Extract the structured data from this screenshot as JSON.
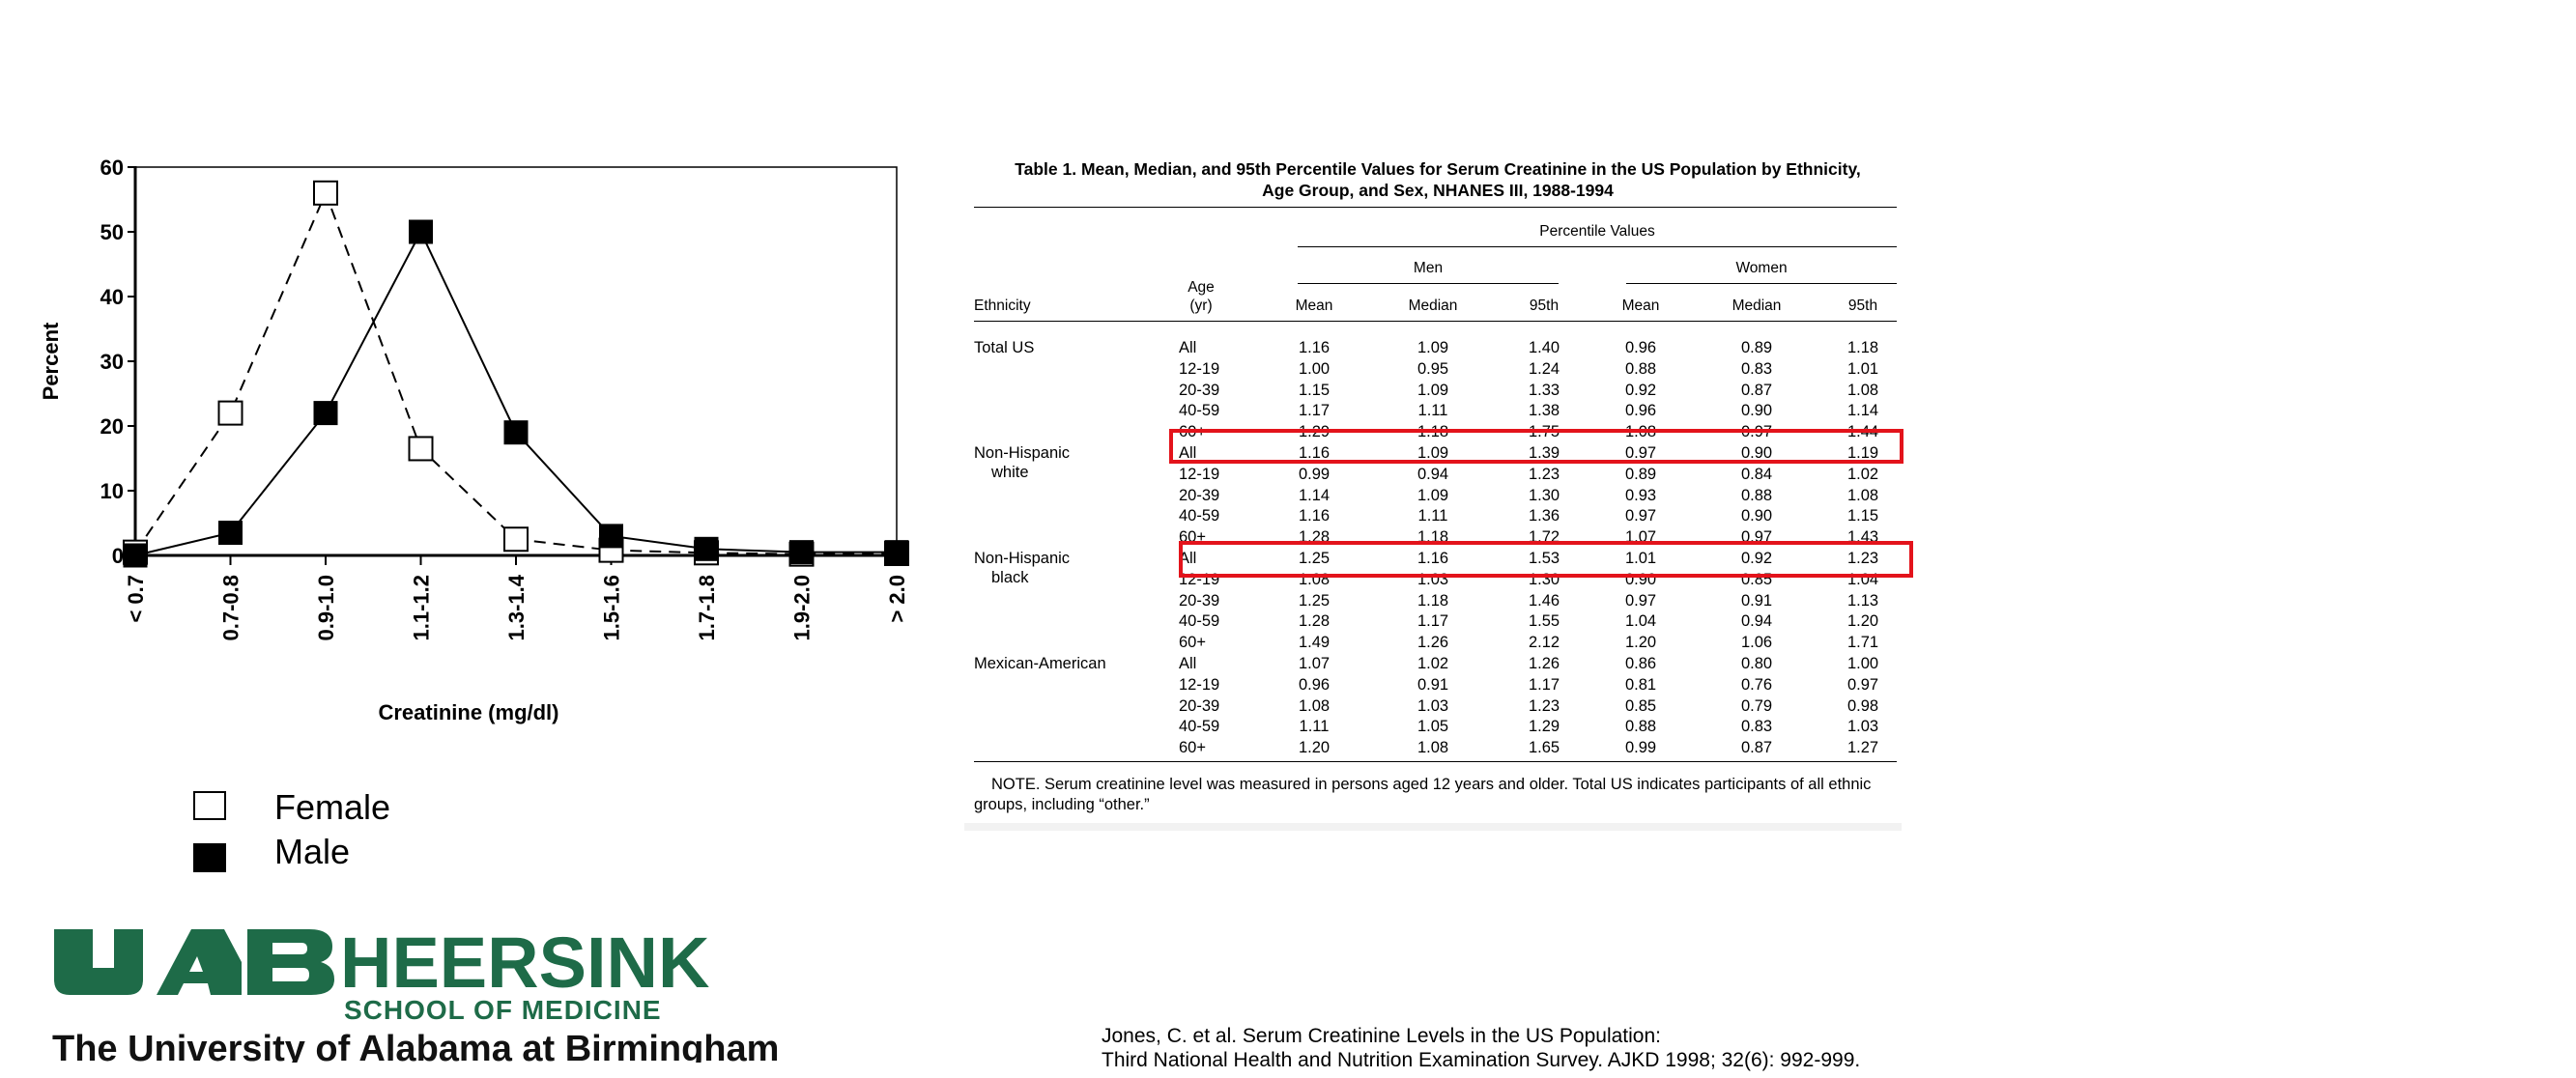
{
  "chart_data": {
    "type": "line",
    "xlabel": "Creatinine (mg/dl)",
    "ylabel": "Percent",
    "categories": [
      "< 0.7",
      "0.7-0.8",
      "0.9-1.0",
      "1.1-1.2",
      "1.3-1.4",
      "1.5-1.6",
      "1.7-1.8",
      "1.9-2.0",
      "> 2.0"
    ],
    "yticks": [
      0,
      10,
      20,
      30,
      40,
      50,
      60
    ],
    "ylim": [
      0,
      60
    ],
    "grid": false,
    "series": [
      {
        "name": "Female",
        "values": [
          0.5,
          22,
          56,
          16.5,
          2.5,
          0.8,
          0.4,
          0.2,
          0.3
        ],
        "color": "#000000",
        "marker": "open-square",
        "line": "dashed"
      },
      {
        "name": "Male",
        "values": [
          0,
          3.5,
          22,
          50,
          19,
          3,
          1,
          0.5,
          0.5
        ],
        "color": "#000000",
        "marker": "filled-square",
        "line": "solid"
      }
    ]
  },
  "legend": {
    "female": "Female",
    "male": "Male"
  },
  "table": {
    "title_line1": "Table 1.  Mean, Median, and 95th Percentile Values for Serum Creatinine in the US Population by Ethnicity,",
    "title_line2": "Age Group, and Sex, NHANES III, 1988-1994",
    "header": {
      "percentile": "Percentile Values",
      "men": "Men",
      "women": "Women",
      "ethnicity": "Ethnicity",
      "age_line1": "Age",
      "age_line2": "(yr)",
      "mean": "Mean",
      "median": "Median",
      "p95": "95th"
    },
    "groups": [
      {
        "ethnicity": [
          "Total US"
        ],
        "rows": [
          [
            "All",
            "1.16",
            "1.09",
            "1.40",
            "0.96",
            "0.89",
            "1.18"
          ],
          [
            "12-19",
            "1.00",
            "0.95",
            "1.24",
            "0.88",
            "0.83",
            "1.01"
          ],
          [
            "20-39",
            "1.15",
            "1.09",
            "1.33",
            "0.92",
            "0.87",
            "1.08"
          ],
          [
            "40-59",
            "1.17",
            "1.11",
            "1.38",
            "0.96",
            "0.90",
            "1.14"
          ],
          [
            "60+",
            "1.29",
            "1.18",
            "1.75",
            "1.08",
            "0.97",
            "1.44"
          ]
        ]
      },
      {
        "ethnicity": [
          "Non-Hispanic",
          "white"
        ],
        "rows": [
          [
            "All",
            "1.16",
            "1.09",
            "1.39",
            "0.97",
            "0.90",
            "1.19"
          ],
          [
            "12-19",
            "0.99",
            "0.94",
            "1.23",
            "0.89",
            "0.84",
            "1.02"
          ],
          [
            "20-39",
            "1.14",
            "1.09",
            "1.30",
            "0.93",
            "0.88",
            "1.08"
          ],
          [
            "40-59",
            "1.16",
            "1.11",
            "1.36",
            "0.97",
            "0.90",
            "1.15"
          ],
          [
            "60+",
            "1.28",
            "1.18",
            "1.72",
            "1.07",
            "0.97",
            "1.43"
          ]
        ]
      },
      {
        "ethnicity": [
          "Non-Hispanic",
          "black"
        ],
        "rows": [
          [
            "All",
            "1.25",
            "1.16",
            "1.53",
            "1.01",
            "0.92",
            "1.23"
          ],
          [
            "12-19",
            "1.08",
            "1.03",
            "1.30",
            "0.90",
            "0.85",
            "1.04"
          ],
          [
            "20-39",
            "1.25",
            "1.18",
            "1.46",
            "0.97",
            "0.91",
            "1.13"
          ],
          [
            "40-59",
            "1.28",
            "1.17",
            "1.55",
            "1.04",
            "0.94",
            "1.20"
          ],
          [
            "60+",
            "1.49",
            "1.26",
            "2.12",
            "1.20",
            "1.06",
            "1.71"
          ]
        ]
      },
      {
        "ethnicity": [
          "Mexican-American"
        ],
        "rows": [
          [
            "All",
            "1.07",
            "1.02",
            "1.26",
            "0.86",
            "0.80",
            "1.00"
          ],
          [
            "12-19",
            "0.96",
            "0.91",
            "1.17",
            "0.81",
            "0.76",
            "0.97"
          ],
          [
            "20-39",
            "1.08",
            "1.03",
            "1.23",
            "0.85",
            "0.79",
            "0.98"
          ],
          [
            "40-59",
            "1.11",
            "1.05",
            "1.29",
            "0.88",
            "0.83",
            "1.03"
          ],
          [
            "60+",
            "1.20",
            "1.08",
            "1.65",
            "0.99",
            "0.87",
            "1.27"
          ]
        ]
      }
    ],
    "note": "NOTE.  Serum creatinine level was measured in persons aged 12 years and older. Total US indicates participants of all ethnic groups, including “other.”",
    "highlight_color": "#e3131b"
  },
  "logo": {
    "mark": "UAB",
    "word": "HEERSINK",
    "school": "SCHOOL OF MEDICINE",
    "university": "The University of Alabama at Birmingham",
    "color": "#1e6b48"
  },
  "citation": {
    "line1": "Jones, C. et al. Serum Creatinine Levels in the US Population:",
    "line2": "Third National Health and Nutrition Examination Survey. AJKD 1998; 32(6): 992-999."
  }
}
